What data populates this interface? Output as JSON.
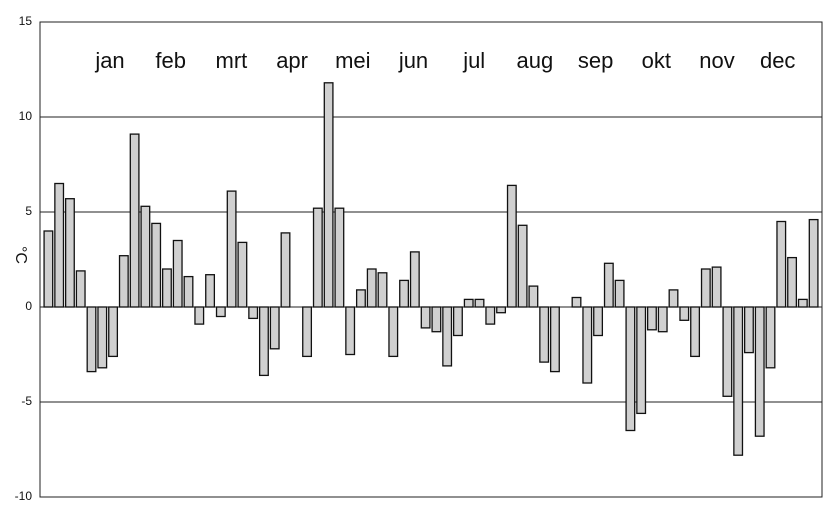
{
  "chart_data": {
    "type": "bar",
    "y_label": "°C",
    "month_labels": [
      "jan",
      "feb",
      "mrt",
      "apr",
      "mei",
      "jun",
      "jul",
      "aug",
      "sep",
      "okt",
      "nov",
      "dec"
    ],
    "values": [
      4.0,
      6.5,
      5.7,
      1.9,
      -3.4,
      -3.2,
      -2.6,
      2.7,
      9.1,
      5.3,
      4.4,
      2.0,
      3.5,
      1.6,
      -0.9,
      1.7,
      -0.5,
      6.1,
      3.4,
      -0.6,
      -3.6,
      -2.2,
      3.9,
      0,
      -2.6,
      5.2,
      11.8,
      5.2,
      -2.5,
      0.9,
      2.0,
      1.8,
      -2.6,
      1.4,
      2.9,
      -1.1,
      -1.3,
      -3.1,
      -1.5,
      0.4,
      0.4,
      -0.9,
      -0.3,
      6.4,
      4.3,
      1.1,
      -2.9,
      -3.4,
      0,
      0.5,
      -4.0,
      -1.5,
      2.3,
      1.4,
      -6.5,
      -5.6,
      -1.2,
      -1.3,
      0.9,
      -0.7,
      -2.6,
      2.0,
      2.1,
      -4.7,
      -7.8,
      -2.4,
      -6.8,
      -3.2,
      4.5,
      2.6,
      0.4,
      4.6
    ],
    "color": "#d0d0d0",
    "ylim": [
      -10,
      15
    ],
    "yticks": [
      -10,
      -5,
      0,
      5,
      10,
      15
    ],
    "grid": true
  }
}
